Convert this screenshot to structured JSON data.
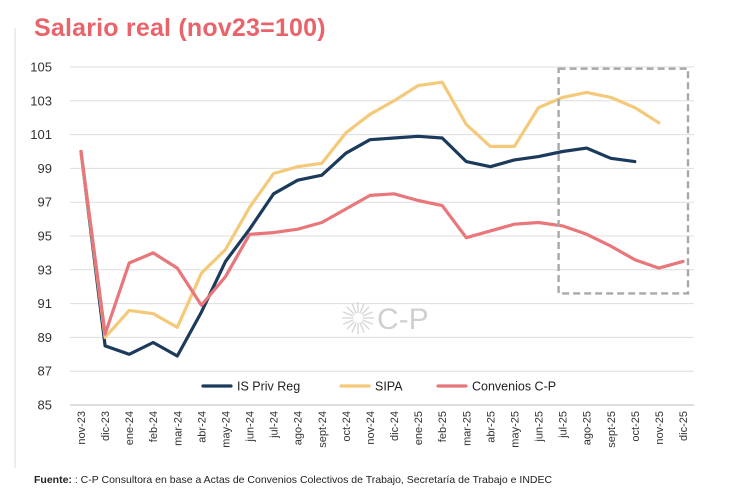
{
  "title": "Salario real (nov23=100)",
  "footer": {
    "label": "Fuente:",
    "text": ": C-P Consultora en base a Actas de Convenios Colectivos de Trabajo, Secretaría de Trabajo e INDEC"
  },
  "watermark": "C-P",
  "colors": {
    "is_priv_reg": "#1b3a5c",
    "sipa": "#f5c97a",
    "convenios": "#e8767a",
    "title": "#e8646a",
    "grid": "#dedede",
    "highlight_box": "#a8a8a8"
  },
  "chart_data": {
    "type": "line",
    "title": "Salario real (nov23=100)",
    "xlabel": "",
    "ylabel": "",
    "ylim": [
      85,
      105
    ],
    "yticks": [
      85,
      87,
      89,
      91,
      93,
      95,
      97,
      99,
      101,
      103,
      105
    ],
    "grid": true,
    "legend_position": "bottom-inside",
    "categories": [
      "nov-23",
      "dic-23",
      "ene-24",
      "feb-24",
      "mar-24",
      "abr-24",
      "may-24",
      "jun-24",
      "jul-24",
      "ago-24",
      "sept-24",
      "oct-24",
      "nov-24",
      "dic-24",
      "ene-25",
      "feb-25",
      "mar-25",
      "abr-25",
      "may-25",
      "jun-25",
      "jul-25",
      "ago-25",
      "sept-25",
      "oct-25",
      "nov-25",
      "dic-25"
    ],
    "series": [
      {
        "name": "IS Priv Reg",
        "color": "#1b3a5c",
        "values": [
          100,
          88.5,
          88.0,
          88.7,
          87.9,
          90.5,
          93.5,
          95.4,
          97.5,
          98.3,
          98.6,
          99.9,
          100.7,
          100.8,
          100.9,
          100.8,
          99.4,
          99.1,
          99.5,
          99.7,
          100.0,
          100.2,
          99.6,
          99.4,
          null,
          null
        ]
      },
      {
        "name": "SIPA",
        "color": "#f5c97a",
        "values": [
          100,
          89.0,
          90.6,
          90.4,
          89.6,
          92.8,
          94.2,
          96.7,
          98.7,
          99.1,
          99.3,
          101.1,
          102.2,
          103.0,
          103.9,
          104.1,
          101.6,
          100.3,
          100.3,
          102.6,
          103.2,
          103.5,
          103.2,
          102.6,
          101.7,
          null
        ]
      },
      {
        "name": "Convenios C-P",
        "color": "#e8767a",
        "values": [
          100,
          89.2,
          93.4,
          94.0,
          93.1,
          90.9,
          92.6,
          95.1,
          95.2,
          95.4,
          95.8,
          96.6,
          97.4,
          97.5,
          97.1,
          96.8,
          94.9,
          95.3,
          95.7,
          95.8,
          95.6,
          95.1,
          94.4,
          93.6,
          93.1,
          93.5
        ]
      }
    ],
    "highlight": {
      "from": "jul-25",
      "to": "dic-25",
      "y_range": [
        91.6,
        104.9
      ],
      "style": "dashed-box"
    }
  }
}
